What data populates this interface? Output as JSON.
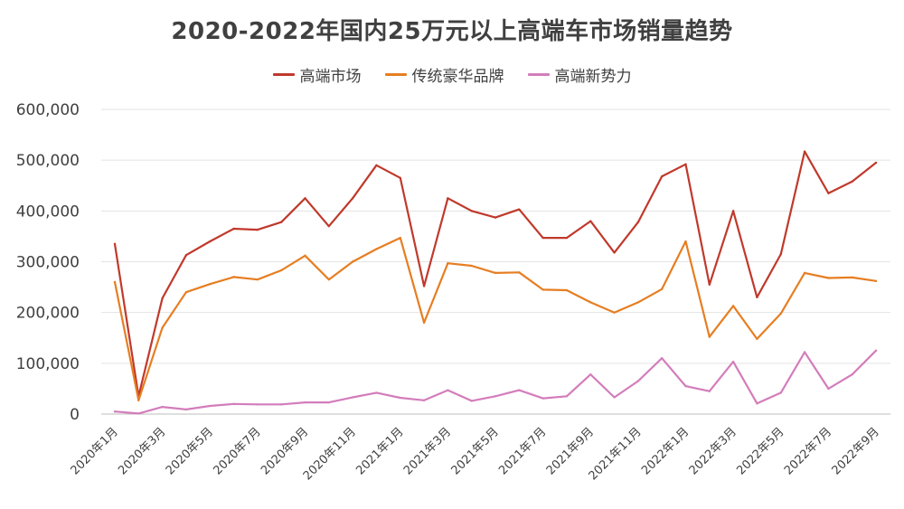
{
  "chart_data": {
    "type": "line",
    "title": "2020-2022年国内25万元以上高端车市场销量趋势",
    "xlabel": "",
    "ylabel": "",
    "ylim": [
      0,
      600000
    ],
    "yticks": [
      0,
      100000,
      200000,
      300000,
      400000,
      500000,
      600000
    ],
    "ytick_labels": [
      "0",
      "100,000",
      "200,000",
      "300,000",
      "400,000",
      "500,000",
      "600,000"
    ],
    "grid": true,
    "legend_position": "top-center",
    "x": [
      "2020年1月",
      "2020年2月",
      "2020年3月",
      "2020年4月",
      "2020年5月",
      "2020年6月",
      "2020年7月",
      "2020年8月",
      "2020年9月",
      "2020年10月",
      "2020年11月",
      "2020年12月",
      "2021年1月",
      "2021年2月",
      "2021年3月",
      "2021年4月",
      "2021年5月",
      "2021年6月",
      "2021年7月",
      "2021年8月",
      "2021年9月",
      "2021年10月",
      "2021年11月",
      "2021年12月",
      "2022年1月",
      "2022年2月",
      "2022年3月",
      "2022年4月",
      "2022年5月",
      "2022年6月",
      "2022年7月",
      "2022年8月",
      "2022年9月"
    ],
    "x_tick_labels": [
      "2020年1月",
      "2020年3月",
      "2020年5月",
      "2020年7月",
      "2020年9月",
      "2020年11月",
      "2021年1月",
      "2021年3月",
      "2021年5月",
      "2021年7月",
      "2021年9月",
      "2021年11月",
      "2022年1月",
      "2022年3月",
      "2022年5月",
      "2022年7月",
      "2022年9月"
    ],
    "series": [
      {
        "name": "高端市场",
        "color": "#c0392b",
        "values": [
          335000,
          35000,
          228000,
          313000,
          340000,
          365000,
          363000,
          378000,
          425000,
          370000,
          425000,
          490000,
          465000,
          252000,
          425000,
          400000,
          387000,
          403000,
          347000,
          347000,
          380000,
          318000,
          378000,
          468000,
          492000,
          255000,
          400000,
          230000,
          315000,
          517000,
          435000,
          458000,
          495000
        ]
      },
      {
        "name": "传统豪华品牌",
        "color": "#e67e22",
        "values": [
          260000,
          27000,
          170000,
          240000,
          256000,
          270000,
          265000,
          283000,
          312000,
          265000,
          300000,
          325000,
          347000,
          180000,
          297000,
          292000,
          278000,
          279000,
          245000,
          244000,
          220000,
          200000,
          220000,
          246000,
          340000,
          152000,
          213000,
          148000,
          198000,
          278000,
          268000,
          269000,
          262000
        ]
      },
      {
        "name": "高端新势力",
        "color": "#d37dbb",
        "values": [
          5000,
          1000,
          14000,
          9000,
          16000,
          20000,
          19000,
          19000,
          23000,
          23000,
          33000,
          42000,
          32000,
          27000,
          47000,
          26000,
          35000,
          47000,
          31000,
          35000,
          78000,
          33000,
          65000,
          110000,
          55000,
          45000,
          103000,
          21000,
          42000,
          122000,
          50000,
          78000,
          125000
        ]
      }
    ]
  }
}
